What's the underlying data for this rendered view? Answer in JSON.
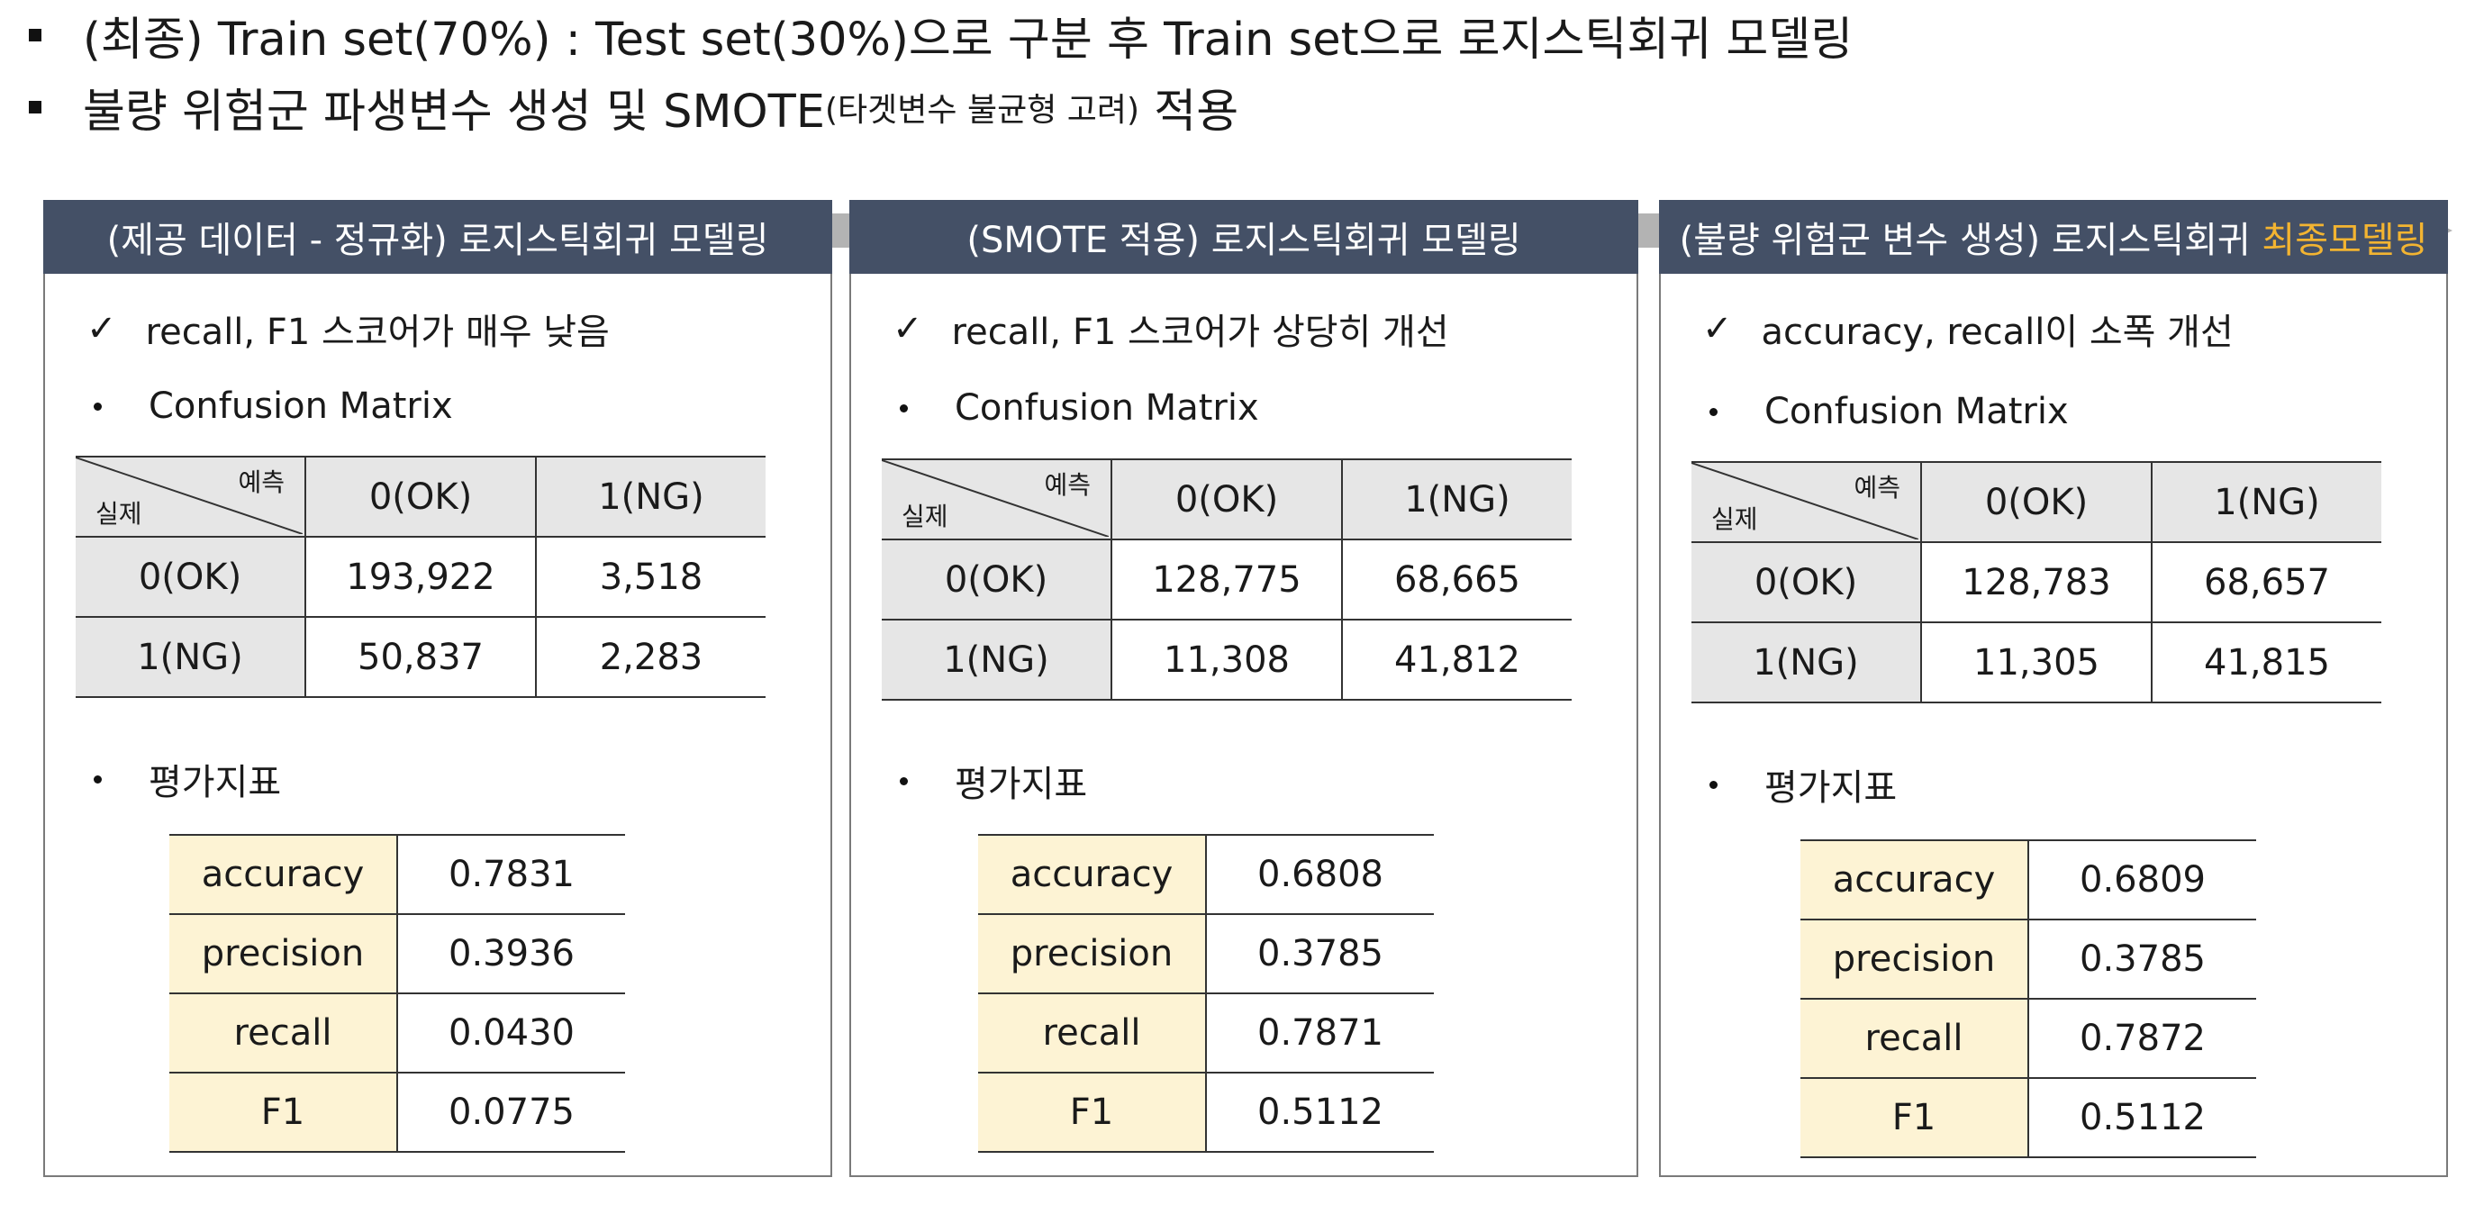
{
  "bullets": [
    {
      "text": "(최종) Train set(70%) : Test set(30%)으로 구분 후 Train set으로 로지스틱회귀 모델링"
    },
    {
      "text": "불량 위험군 파생변수 생성 및 SMOTE",
      "small": "(타겟변수 불균형 고려)",
      "tail": " 적용"
    }
  ],
  "colors": {
    "header_bg": "#445066",
    "highlight": "#f3b431",
    "metric_cell_bg": "#fdf3d4",
    "matrix_label_bg": "#e6e6e6",
    "arrow": "#b3b3b3"
  },
  "panels": [
    {
      "title": "(제공 데이터 - 정규화) 로지스틱회귀 모델링",
      "title_highlight": "",
      "note": "recall, F1 스코어가 매우 낮음",
      "cm_label": "Confusion Matrix",
      "cm": {
        "pred_label": "예측",
        "actual_label": "실제",
        "cols": [
          "0(OK)",
          "1(NG)"
        ],
        "rows": [
          {
            "label": "0(OK)",
            "values": [
              "193,922",
              "3,518"
            ]
          },
          {
            "label": "1(NG)",
            "values": [
              "50,837",
              "2,283"
            ]
          }
        ]
      },
      "eval_label": "평가지표",
      "metrics": [
        {
          "name": "accuracy",
          "value": "0.7831"
        },
        {
          "name": "precision",
          "value": "0.3936"
        },
        {
          "name": "recall",
          "value": "0.0430"
        },
        {
          "name": "F1",
          "value": "0.0775"
        }
      ]
    },
    {
      "title": "(SMOTE 적용) 로지스틱회귀 모델링",
      "title_highlight": "",
      "note": "recall, F1 스코어가 상당히 개선",
      "cm_label": "Confusion Matrix",
      "cm": {
        "pred_label": "예측",
        "actual_label": "실제",
        "cols": [
          "0(OK)",
          "1(NG)"
        ],
        "rows": [
          {
            "label": "0(OK)",
            "values": [
              "128,775",
              "68,665"
            ]
          },
          {
            "label": "1(NG)",
            "values": [
              "11,308",
              "41,812"
            ]
          }
        ]
      },
      "eval_label": "평가지표",
      "metrics": [
        {
          "name": "accuracy",
          "value": "0.6808"
        },
        {
          "name": "precision",
          "value": "0.3785"
        },
        {
          "name": "recall",
          "value": "0.7871"
        },
        {
          "name": "F1",
          "value": "0.5112"
        }
      ]
    },
    {
      "title": "(불량 위험군 변수 생성) 로지스틱회귀 ",
      "title_highlight": "최종모델링",
      "note": "accuracy, recall이 소폭 개선",
      "cm_label": "Confusion Matrix",
      "cm": {
        "pred_label": "예측",
        "actual_label": "실제",
        "cols": [
          "0(OK)",
          "1(NG)"
        ],
        "rows": [
          {
            "label": "0(OK)",
            "values": [
              "128,783",
              "68,657"
            ]
          },
          {
            "label": "1(NG)",
            "values": [
              "11,305",
              "41,815"
            ]
          }
        ]
      },
      "eval_label": "평가지표",
      "metrics": [
        {
          "name": "accuracy",
          "value": "0.6809"
        },
        {
          "name": "precision",
          "value": "0.3785"
        },
        {
          "name": "recall",
          "value": "0.7872"
        },
        {
          "name": "F1",
          "value": "0.5112"
        }
      ]
    }
  ]
}
